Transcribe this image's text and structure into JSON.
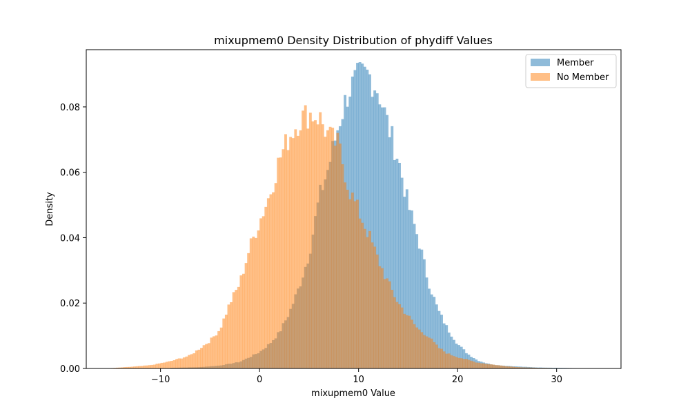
{
  "chart_data": {
    "type": "histogram",
    "title": "mixupmem0 Density Distribution of phydiff Values",
    "xlabel": "mixupmem0 Value",
    "ylabel": "Density",
    "xlim": [
      -17.5,
      36.5
    ],
    "ylim": [
      0,
      0.0975
    ],
    "x_ticks": [
      -10,
      0,
      10,
      20,
      30
    ],
    "x_tick_labels": [
      "−10",
      "0",
      "10",
      "20",
      "30"
    ],
    "y_ticks": [
      0.0,
      0.02,
      0.04,
      0.06,
      0.08
    ],
    "y_tick_labels": [
      "0.00",
      "0.02",
      "0.04",
      "0.06",
      "0.08"
    ],
    "grid": false,
    "legend_position": "top-right",
    "series": [
      {
        "name": "Member",
        "color": "#1f77b4",
        "opacity": 0.5,
        "points": [
          [
            -9,
            0.0002
          ],
          [
            -6,
            0.0004
          ],
          [
            -4,
            0.0009
          ],
          [
            -2,
            0.002
          ],
          [
            0,
            0.005
          ],
          [
            1,
            0.0075
          ],
          [
            2,
            0.011
          ],
          [
            3,
            0.017
          ],
          [
            4,
            0.025
          ],
          [
            5,
            0.035
          ],
          [
            6,
            0.052
          ],
          [
            7,
            0.062
          ],
          [
            8,
            0.075
          ],
          [
            9,
            0.085
          ],
          [
            10,
            0.089
          ],
          [
            11,
            0.09
          ],
          [
            12,
            0.085
          ],
          [
            13,
            0.074
          ],
          [
            14,
            0.064
          ],
          [
            15,
            0.05
          ],
          [
            16,
            0.04
          ],
          [
            17,
            0.027
          ],
          [
            18,
            0.018
          ],
          [
            19,
            0.012
          ],
          [
            20,
            0.0075
          ],
          [
            21,
            0.0045
          ],
          [
            22,
            0.0025
          ],
          [
            23,
            0.0015
          ],
          [
            24,
            0.001
          ],
          [
            26,
            0.0006
          ],
          [
            28,
            0.0003
          ],
          [
            30,
            0.0002
          ],
          [
            32,
            0.0001
          ]
        ]
      },
      {
        "name": "No Member",
        "color": "#ff7f0e",
        "opacity": 0.5,
        "points": [
          [
            -15,
            0.0001
          ],
          [
            -13,
            0.0005
          ],
          [
            -11,
            0.001
          ],
          [
            -9,
            0.0022
          ],
          [
            -7,
            0.004
          ],
          [
            -5,
            0.0085
          ],
          [
            -4,
            0.012
          ],
          [
            -3,
            0.02
          ],
          [
            -2,
            0.026
          ],
          [
            -1,
            0.037
          ],
          [
            0,
            0.045
          ],
          [
            1,
            0.053
          ],
          [
            2,
            0.064
          ],
          [
            3,
            0.071
          ],
          [
            4,
            0.076
          ],
          [
            5,
            0.078
          ],
          [
            6,
            0.077
          ],
          [
            7,
            0.071
          ],
          [
            8,
            0.068
          ],
          [
            9,
            0.055
          ],
          [
            10,
            0.048
          ],
          [
            11,
            0.041
          ],
          [
            12,
            0.033
          ],
          [
            13,
            0.026
          ],
          [
            14,
            0.02
          ],
          [
            15,
            0.016
          ],
          [
            16,
            0.012
          ],
          [
            17,
            0.01
          ],
          [
            18,
            0.0065
          ],
          [
            19,
            0.0045
          ],
          [
            20,
            0.0035
          ],
          [
            22,
            0.0018
          ],
          [
            24,
            0.001
          ],
          [
            26,
            0.0004
          ],
          [
            28,
            0.0002
          ],
          [
            30,
            0.0001
          ]
        ]
      }
    ]
  }
}
